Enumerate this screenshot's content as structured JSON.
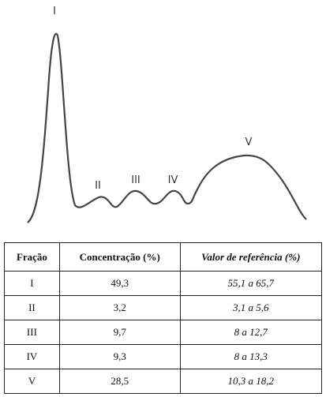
{
  "diagram": {
    "labels": [
      "I",
      "II",
      "III",
      "IV",
      "V"
    ]
  },
  "table": {
    "header": [
      "Fração",
      "Concentração (%)",
      "Valor de referência (%)"
    ],
    "rows": [
      [
        "I",
        "49,3",
        "55,1 a 65,7"
      ],
      [
        "II",
        "3,2",
        "3,1 a 5,6"
      ],
      [
        "III",
        "9,7",
        "8 a 12,7"
      ],
      [
        "IV",
        "9,3",
        "8 a 13,3"
      ],
      [
        "V",
        "28,5",
        "10,3 a 18,2"
      ]
    ]
  }
}
